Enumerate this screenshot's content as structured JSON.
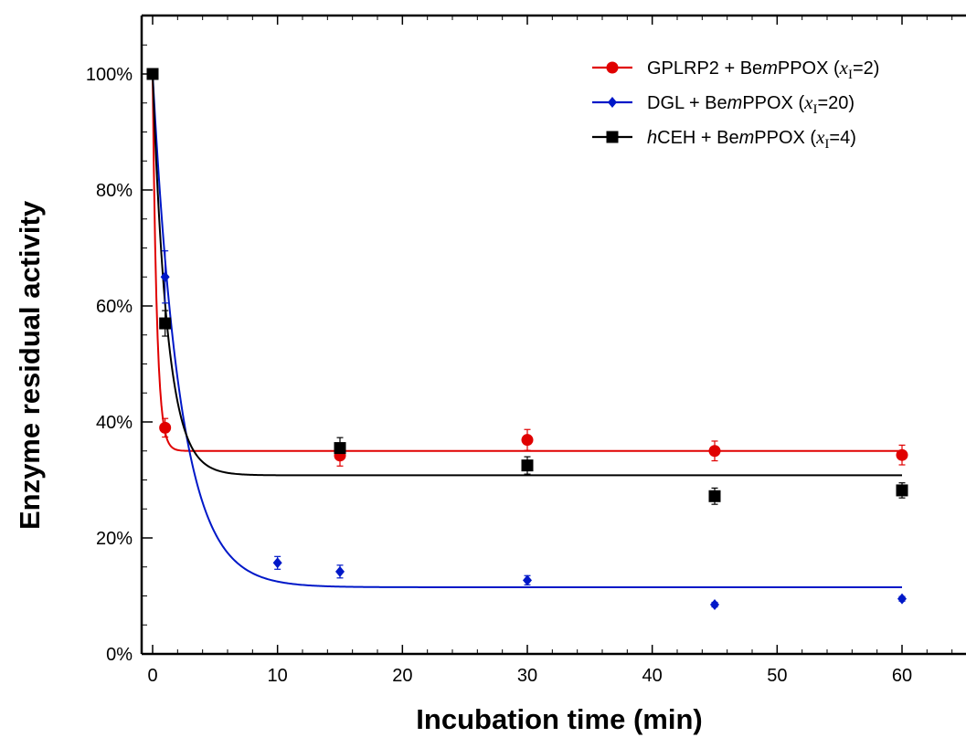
{
  "chart_data": {
    "type": "scatter",
    "xlabel": "Incubation time (min)",
    "ylabel": "Enzyme residual activity",
    "xlim": [
      0,
      65
    ],
    "ylim": [
      0,
      110
    ],
    "x_ticks": [
      0,
      10,
      20,
      30,
      40,
      50,
      60
    ],
    "y_ticks": [
      0,
      20,
      40,
      60,
      80,
      100
    ],
    "y_tick_labels": [
      "0%",
      "20%",
      "40%",
      "60%",
      "80%",
      "100%"
    ],
    "grid": false,
    "legend_position": "top-right",
    "series": [
      {
        "name": "GPLRP2 + BemPPOX (xI=2)",
        "legend": {
          "pre": "GPLRP2 + Be",
          "italic1": "m",
          "mid": "PPOX (",
          "var": "x",
          "sub": "I",
          "post": "=2)"
        },
        "color": "#e00000",
        "marker": "circle",
        "points": [
          {
            "x": 0,
            "y": 100,
            "err": 0
          },
          {
            "x": 1,
            "y": 39,
            "err": 1.6
          },
          {
            "x": 15,
            "y": 34.2,
            "err": 1.8
          },
          {
            "x": 30,
            "y": 36.9,
            "err": 1.8
          },
          {
            "x": 45,
            "y": 35,
            "err": 1.7
          },
          {
            "x": 60,
            "y": 34.3,
            "err": 1.7
          }
        ],
        "fit": {
          "plateau": 35,
          "start": 100,
          "rate": 3
        }
      },
      {
        "name": "DGL + BemPPOX (xI=20)",
        "legend": {
          "pre": "DGL + Be",
          "italic1": "m",
          "mid": "PPOX (",
          "var": "x",
          "sub": "I",
          "post": "=20)"
        },
        "color": "#0018c8",
        "marker": "diamond",
        "points": [
          {
            "x": 0,
            "y": 100,
            "err": 0
          },
          {
            "x": 1,
            "y": 65,
            "err": 4.5
          },
          {
            "x": 10,
            "y": 15.7,
            "err": 1.1
          },
          {
            "x": 15,
            "y": 14.2,
            "err": 1.1
          },
          {
            "x": 30,
            "y": 12.7,
            "err": 0.8
          },
          {
            "x": 45,
            "y": 8.5,
            "err": 0.4
          },
          {
            "x": 60,
            "y": 9.5,
            "err": 0.4
          }
        ],
        "fit": {
          "plateau": 11.5,
          "start": 100,
          "rate": 0.45
        }
      },
      {
        "name": "hCEH + BemPPOX (xI=4)",
        "legend": {
          "pre": "",
          "italic0": "h",
          "pre2": "CEH + Be",
          "italic1": "m",
          "mid": "PPOX (",
          "var": "x",
          "sub": "I",
          "post": "=4)"
        },
        "color": "#000000",
        "marker": "square",
        "points": [
          {
            "x": 0,
            "y": 100,
            "err": 0
          },
          {
            "x": 1,
            "y": 57,
            "err": 2.2
          },
          {
            "x": 15,
            "y": 35.5,
            "err": 1.8
          },
          {
            "x": 30,
            "y": 32.5,
            "err": 1.5
          },
          {
            "x": 45,
            "y": 27.2,
            "err": 1.4
          },
          {
            "x": 60,
            "y": 28.2,
            "err": 1.3
          }
        ],
        "fit": {
          "plateau": 30.8,
          "start": 100,
          "rate": 0.85
        }
      }
    ]
  }
}
